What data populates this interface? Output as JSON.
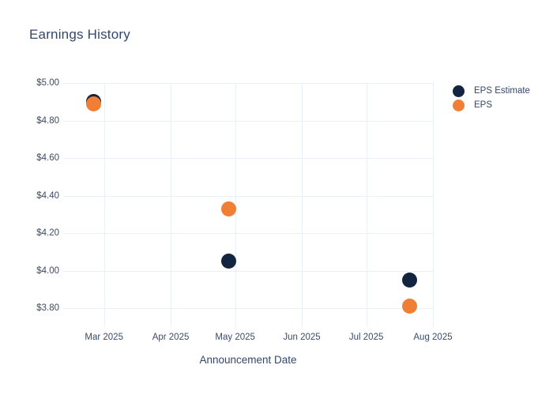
{
  "title": "Earnings History",
  "xlabel": "Announcement Date",
  "legend": [
    {
      "label": "EPS Estimate",
      "color": "#132440"
    },
    {
      "label": "EPS",
      "color": "#f07e34"
    }
  ],
  "colors": {
    "estimate": "#132440",
    "eps": "#f07e34",
    "grid": "#ebeff7",
    "title_text": "#33476b",
    "axis_text": "#3a4b68",
    "background": "#ffffff"
  },
  "chart_data": {
    "type": "scatter",
    "title": "Earnings History",
    "xlabel": "Announcement Date",
    "ylabel": "",
    "grid": true,
    "legend_position": "outside-top-right",
    "x_domain": [
      "2025-02-10",
      "2025-08-01"
    ],
    "y_domain": [
      3.7,
      5.0
    ],
    "y_ticks": [
      {
        "value": 5.0,
        "label": "$5.00"
      },
      {
        "value": 4.8,
        "label": "$4.80"
      },
      {
        "value": 4.6,
        "label": "$4.60"
      },
      {
        "value": 4.4,
        "label": "$4.40"
      },
      {
        "value": 4.2,
        "label": "$4.20"
      },
      {
        "value": 4.0,
        "label": "$4.00"
      },
      {
        "value": 3.8,
        "label": "$3.80"
      }
    ],
    "x_ticks": [
      {
        "date": "2025-03-01",
        "label": "Mar 2025"
      },
      {
        "date": "2025-04-01",
        "label": "Apr 2025"
      },
      {
        "date": "2025-05-01",
        "label": "May 2025"
      },
      {
        "date": "2025-06-01",
        "label": "Jun 2025"
      },
      {
        "date": "2025-07-01",
        "label": "Jul 2025"
      },
      {
        "date": "2025-08-01",
        "label": "Aug 2025"
      }
    ],
    "series": [
      {
        "name": "EPS Estimate",
        "color": "#132440",
        "points": [
          {
            "date": "2025-02-24",
            "value": 4.9
          },
          {
            "date": "2025-04-28",
            "value": 4.05
          },
          {
            "date": "2025-07-21",
            "value": 3.95
          }
        ]
      },
      {
        "name": "EPS",
        "color": "#f07e34",
        "points": [
          {
            "date": "2025-02-24",
            "value": 4.89
          },
          {
            "date": "2025-04-28",
            "value": 4.33
          },
          {
            "date": "2025-07-21",
            "value": 3.81
          }
        ]
      }
    ]
  }
}
